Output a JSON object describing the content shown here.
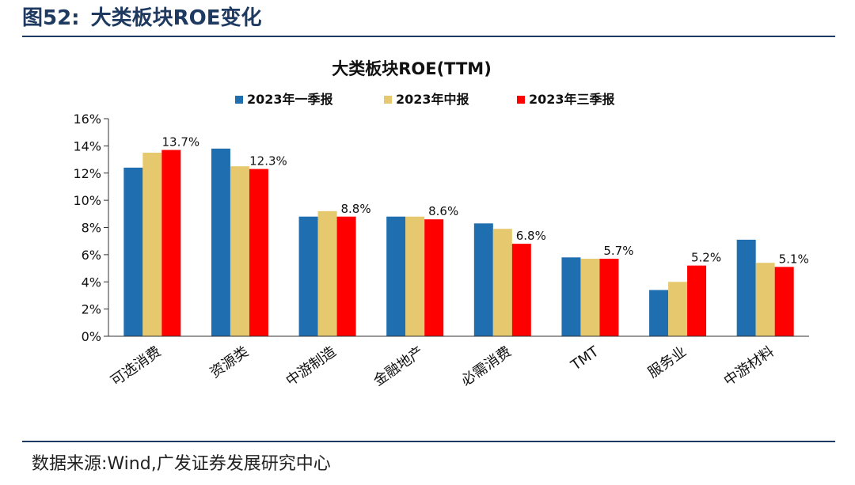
{
  "header": {
    "figure_number": "图52:",
    "figure_title": "大类板块ROE变化"
  },
  "footer": {
    "source": "数据来源:Wind,广发证券发展研究中心"
  },
  "colors": {
    "series": [
      "#1f6eb0",
      "#e6c96e",
      "#ff0000"
    ],
    "header": "#1f3a60"
  },
  "chart_data": {
    "type": "bar",
    "title": "大类板块ROE(TTM)",
    "categories": [
      "可选消费",
      "资源类",
      "中游制造",
      "金融地产",
      "必需消费",
      "TMT",
      "服务业",
      "中游材料"
    ],
    "series": [
      {
        "name": "2023年一季报",
        "values": [
          12.4,
          13.8,
          8.8,
          8.8,
          8.3,
          5.8,
          3.4,
          7.1
        ]
      },
      {
        "name": "2023年中报",
        "values": [
          13.5,
          12.5,
          9.2,
          8.8,
          7.9,
          5.7,
          4.0,
          5.4
        ]
      },
      {
        "name": "2023年三季报",
        "values": [
          13.7,
          12.3,
          8.8,
          8.6,
          6.8,
          5.7,
          5.2,
          5.1
        ]
      }
    ],
    "data_labels": [
      "13.7%",
      "12.3%",
      "8.8%",
      "8.6%",
      "6.8%",
      "5.7%",
      "5.2%",
      "5.1%"
    ],
    "y_ticks": [
      "0%",
      "2%",
      "4%",
      "6%",
      "8%",
      "10%",
      "12%",
      "14%",
      "16%"
    ],
    "ylim": [
      0,
      16
    ],
    "xlabel": "",
    "ylabel": "",
    "grid": false,
    "legend_position": "top"
  }
}
